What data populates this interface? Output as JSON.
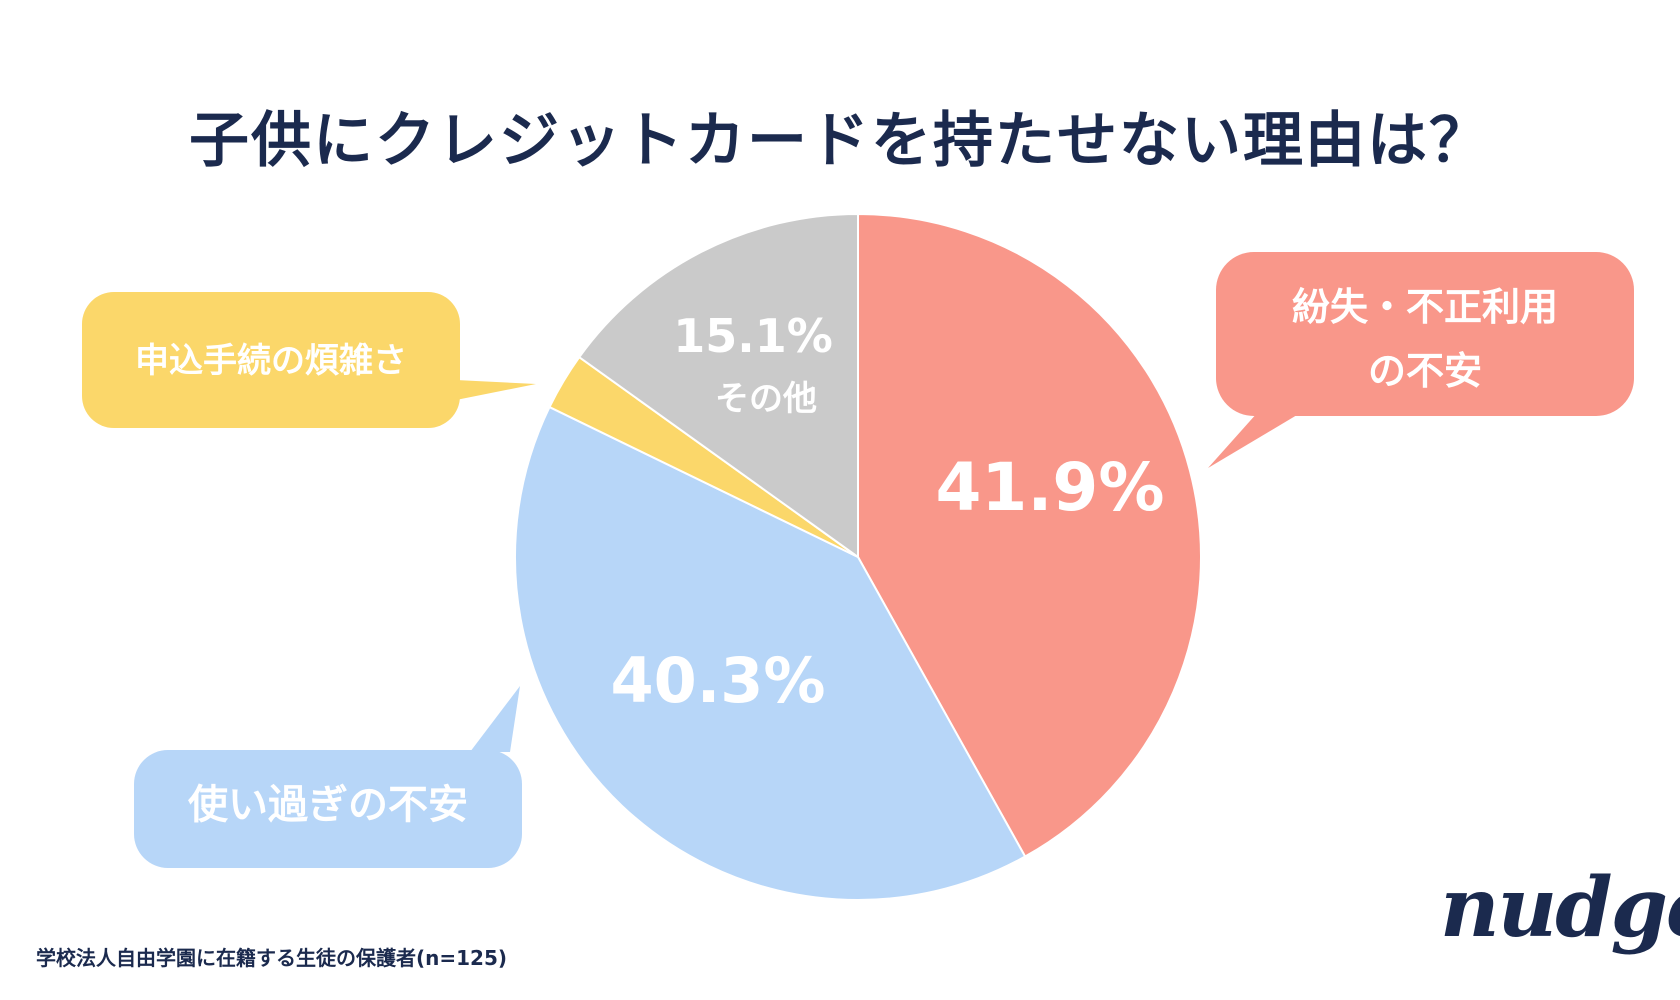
{
  "title": "子供にクレジットカードを持たせない理由は？",
  "note": "学校法人自由学園に在籍する生徒の保護者(n=125)",
  "logo": "nudge",
  "chart_data": {
    "type": "pie",
    "title": "子供にクレジットカードを持たせない理由は？",
    "slices": [
      {
        "label": "紛失・不正利用の不安",
        "value": 41.9,
        "display": "41.9%",
        "color": "#f9978a"
      },
      {
        "label": "使い過ぎの不安",
        "value": 40.3,
        "display": "40.3%",
        "color": "#b7d6f8"
      },
      {
        "label": "申込手続の煩雑さ",
        "value": 2.7,
        "display": "",
        "color": "#fbd76a"
      },
      {
        "label": "その他",
        "value": 15.1,
        "display": "15.1%",
        "color": "#cacaca"
      }
    ],
    "callouts": [
      {
        "lines": [
          "紛失・不正利用",
          "の不安"
        ],
        "color": "#f9978a"
      },
      {
        "lines": [
          "使い過ぎの不安"
        ],
        "color": "#b7d6f8"
      },
      {
        "lines": [
          "申込手続の煩雑さ"
        ],
        "color": "#fbd76a"
      }
    ],
    "inner_label_other": "その他"
  }
}
